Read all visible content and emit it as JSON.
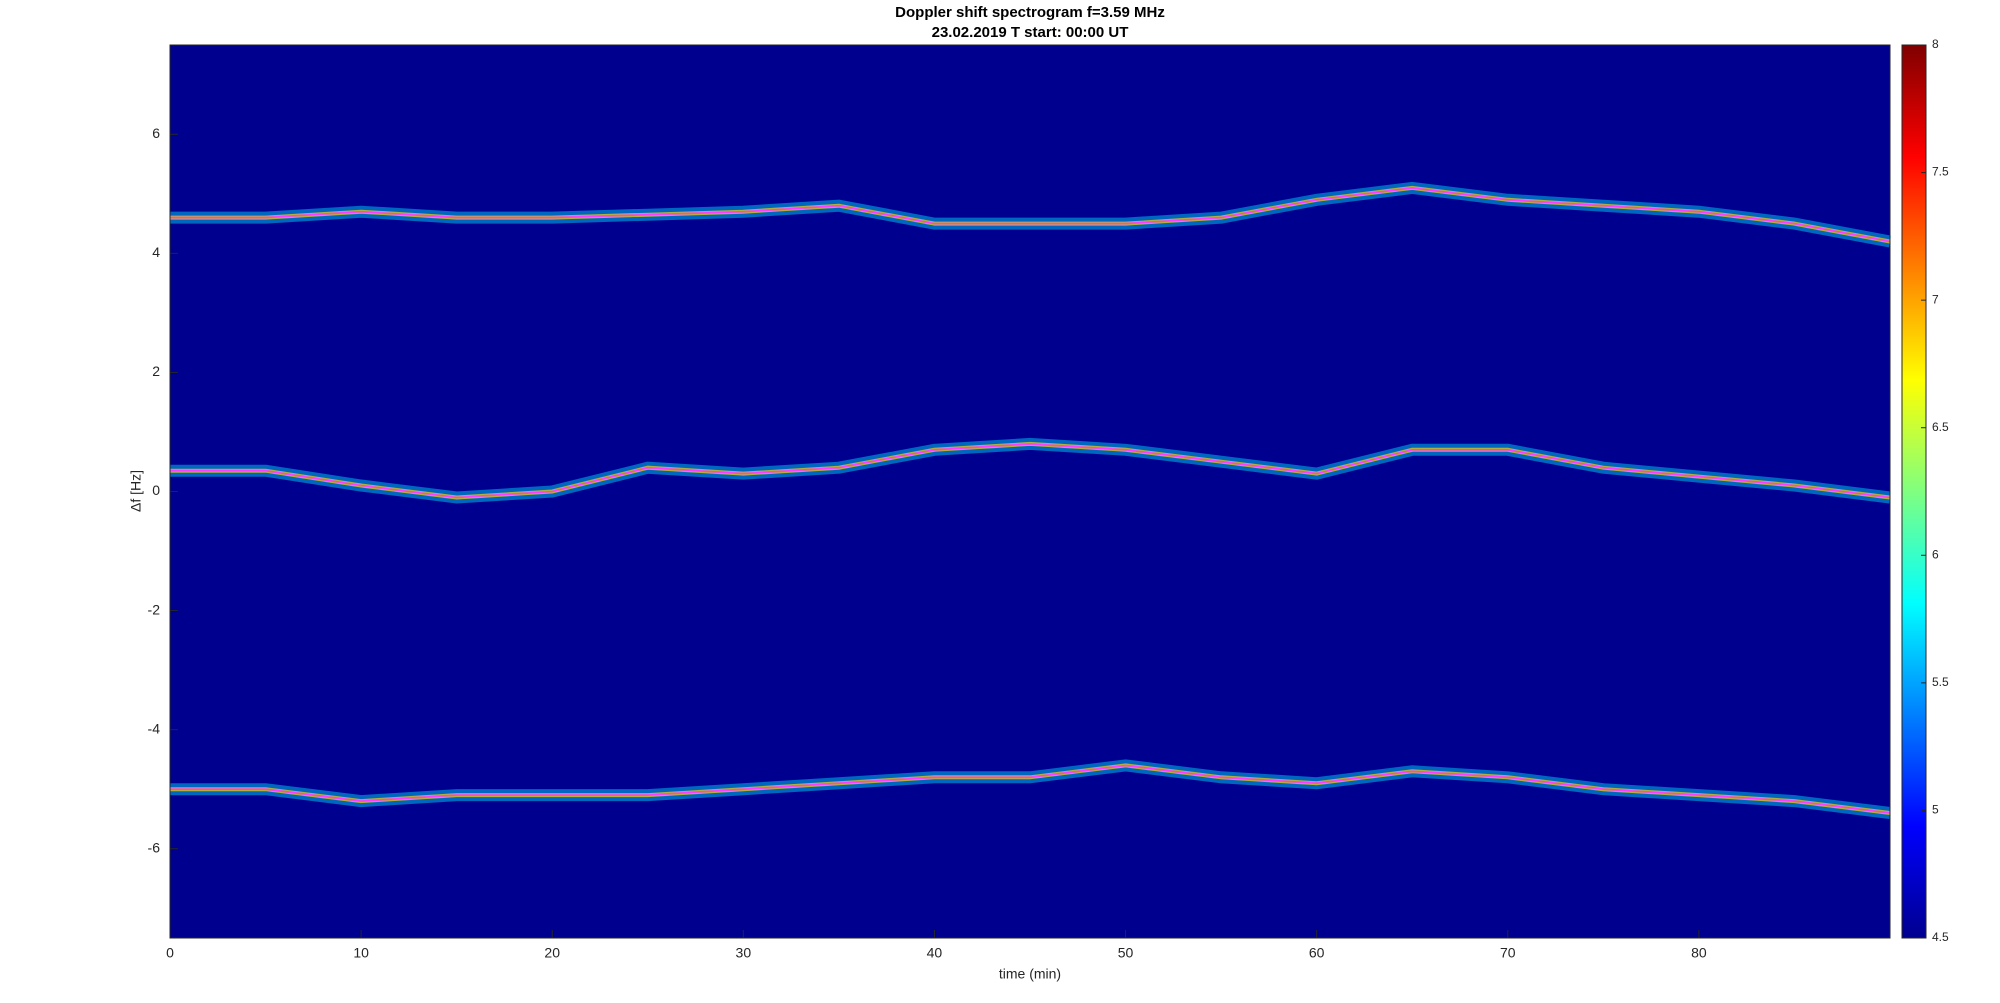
{
  "chart_data": {
    "type": "spectrogram",
    "title": "Doppler shift spectrogram f=3.59 MHz",
    "subtitle": "23.02.2019   T start: 00:00 UT",
    "xlabel": "time (min)",
    "ylabel": "Δf [Hz]",
    "xlim": [
      0,
      90
    ],
    "xticks": [
      0,
      10,
      20,
      30,
      40,
      50,
      60,
      70,
      80
    ],
    "ylim": [
      -7.5,
      7.5
    ],
    "yticks": [
      -6,
      -4,
      -2,
      0,
      2,
      4,
      6
    ],
    "colormap": "jet",
    "clim": [
      4.5,
      8
    ],
    "cticks": [
      4.5,
      5,
      5.5,
      6,
      6.5,
      7,
      7.5,
      8
    ],
    "background": "#00008f",
    "x": [
      0,
      5,
      10,
      15,
      20,
      25,
      30,
      35,
      40,
      45,
      50,
      55,
      60,
      65,
      70,
      75,
      80,
      85,
      90
    ],
    "series": [
      {
        "color": "#ff3cff",
        "values": [
          4.6,
          4.6,
          4.7,
          4.6,
          4.6,
          4.65,
          4.7,
          4.8,
          4.5,
          4.5,
          4.5,
          4.6,
          4.9,
          5.1,
          4.9,
          4.8,
          4.7,
          4.5,
          4.2
        ]
      },
      {
        "color": "#ff3cff",
        "values": [
          0.35,
          0.35,
          0.1,
          -0.1,
          0.0,
          0.4,
          0.3,
          0.4,
          0.7,
          0.8,
          0.7,
          0.5,
          0.3,
          0.7,
          0.7,
          0.4,
          0.25,
          0.1,
          -0.1
        ]
      },
      {
        "color": "#ff3cff",
        "values": [
          -5.0,
          -5.0,
          -5.2,
          -5.1,
          -5.1,
          -5.1,
          -5.0,
          -4.9,
          -4.8,
          -4.8,
          -4.6,
          -4.8,
          -4.9,
          -4.7,
          -4.8,
          -5.0,
          -5.1,
          -5.2,
          -5.4
        ]
      }
    ]
  }
}
